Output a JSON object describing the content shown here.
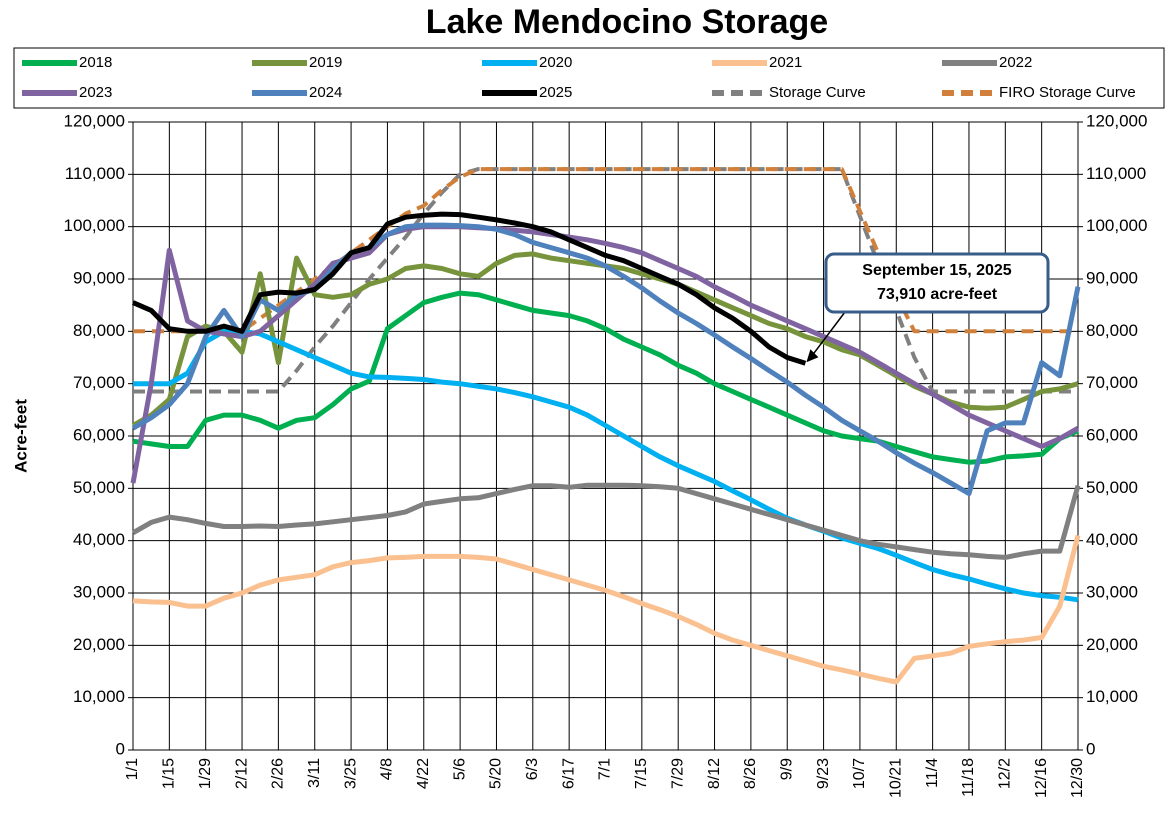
{
  "chart_data": {
    "type": "line",
    "title": "Lake Mendocino Storage",
    "y_label": "Acre-feet",
    "categories": [
      "1/1",
      null,
      "1/15",
      null,
      "1/29",
      null,
      "2/12",
      null,
      "2/26",
      null,
      "3/11",
      null,
      "3/25",
      null,
      "4/8",
      null,
      "4/22",
      null,
      "5/6",
      null,
      "5/20",
      null,
      "6/3",
      null,
      "6/17",
      null,
      "7/1",
      null,
      "7/15",
      null,
      "7/29",
      null,
      "8/12",
      null,
      "8/26",
      null,
      "9/9",
      null,
      "9/23",
      null,
      "10/7",
      null,
      "10/21",
      null,
      "11/4",
      null,
      "11/18",
      null,
      "12/2",
      null,
      "12/16",
      null,
      "12/30"
    ],
    "ylim": [
      0,
      120000
    ],
    "yticks": [
      0,
      {
        "value": 10000,
        "label": "10,000"
      },
      {
        "value": 20000,
        "label": "20,000"
      },
      {
        "value": 30000,
        "label": "30,000"
      },
      {
        "value": 40000,
        "label": "40,000"
      },
      {
        "value": 50000,
        "label": "50,000"
      },
      {
        "value": 60000,
        "label": "60,000"
      },
      {
        "value": 70000,
        "label": "70,000"
      },
      {
        "value": 80000,
        "label": "80,000"
      },
      {
        "value": 90000,
        "label": "90,000"
      },
      {
        "value": 100000,
        "label": "100,000"
      },
      {
        "value": 110000,
        "label": "110,000"
      },
      {
        "value": 120000,
        "label": "120,000"
      }
    ],
    "grid": true,
    "legend": "top",
    "annotation": [
      "September 15, 2025",
      "73,910 acre-feet"
    ],
    "series": [
      {
        "name": "2018",
        "color": "#00b050",
        "values": [
          59000,
          58500,
          58000,
          58000,
          63000,
          64000,
          64000,
          63000,
          61500,
          63000,
          63500,
          66000,
          69000,
          70500,
          80500,
          83000,
          85500,
          86500,
          87300,
          87000,
          86000,
          85000,
          84000,
          83500,
          83000,
          82000,
          80500,
          78500,
          77000,
          75500,
          73500,
          72000,
          70000,
          68500,
          67000,
          65500,
          64000,
          62500,
          61000,
          60000,
          59500,
          59000,
          58000,
          57000,
          56000,
          55500,
          55000,
          55200,
          56000,
          56200,
          56500,
          59500,
          61000
        ]
      },
      {
        "name": "2019",
        "color": "#77933c",
        "values": [
          62000,
          64000,
          67000,
          79000,
          81000,
          80000,
          76000,
          91000,
          74000,
          94000,
          87000,
          86500,
          87000,
          89000,
          90000,
          92000,
          92500,
          92000,
          91000,
          90500,
          93000,
          94500,
          94800,
          94000,
          93500,
          93000,
          92500,
          92000,
          91000,
          90000,
          89000,
          87500,
          86000,
          84500,
          83000,
          81500,
          80500,
          79000,
          78000,
          76500,
          75500,
          73500,
          71500,
          69500,
          68000,
          66500,
          65500,
          65300,
          65500,
          67000,
          68500,
          69000,
          70000
        ]
      },
      {
        "name": "2020",
        "color": "#00b0f0",
        "values": [
          70000,
          70000,
          70000,
          72000,
          78000,
          80000,
          80000,
          79500,
          78000,
          76500,
          75000,
          73500,
          72000,
          71300,
          71200,
          71000,
          70800,
          70300,
          70000,
          69500,
          69000,
          68300,
          67500,
          66500,
          65500,
          64000,
          62000,
          60000,
          58000,
          56000,
          54300,
          52800,
          51300,
          49500,
          47800,
          46000,
          44300,
          43000,
          41800,
          40500,
          39500,
          38500,
          37200,
          35800,
          34500,
          33500,
          32700,
          31700,
          30800,
          30000,
          29500,
          29200,
          28700
        ]
      },
      {
        "name": "2021",
        "color": "#fac090",
        "values": [
          28500,
          28300,
          28200,
          27500,
          27500,
          29000,
          30000,
          31500,
          32500,
          33000,
          33500,
          35000,
          35800,
          36200,
          36700,
          36800,
          37000,
          37000,
          37000,
          36800,
          36500,
          35500,
          34500,
          33500,
          32500,
          31500,
          30500,
          29300,
          28000,
          26800,
          25500,
          24000,
          22300,
          21000,
          20000,
          19000,
          18000,
          17000,
          16000,
          15300,
          14500,
          13700,
          13000,
          17500,
          18000,
          18500,
          19800,
          20300,
          20700,
          21000,
          21500,
          27500,
          41000
        ]
      },
      {
        "name": "2022",
        "color": "#808080",
        "values": [
          41500,
          43500,
          44500,
          44000,
          43300,
          42700,
          42700,
          42800,
          42700,
          43000,
          43200,
          43600,
          44000,
          44400,
          44800,
          45500,
          47000,
          47500,
          48000,
          48200,
          49000,
          49800,
          50500,
          50500,
          50200,
          50600,
          50600,
          50600,
          50500,
          50300,
          50000,
          49000,
          48000,
          47000,
          46000,
          45000,
          44000,
          43000,
          42000,
          41000,
          40000,
          39300,
          38800,
          38300,
          37800,
          37500,
          37300,
          37000,
          36800,
          37500,
          38000,
          38000,
          50500
        ]
      },
      {
        "name": "2023",
        "color": "#8064a2",
        "values": [
          51000,
          70000,
          95500,
          82000,
          80000,
          79500,
          79000,
          80000,
          83000,
          86000,
          89000,
          93000,
          94000,
          95000,
          98500,
          99500,
          100000,
          100000,
          100000,
          99800,
          99600,
          99300,
          99000,
          98500,
          98000,
          97500,
          96800,
          96000,
          95000,
          93500,
          92000,
          90500,
          88500,
          86800,
          85000,
          83500,
          82000,
          80500,
          79000,
          77500,
          76000,
          74000,
          72000,
          70000,
          68000,
          66000,
          64000,
          62500,
          61000,
          59500,
          58000,
          59500,
          61500
        ]
      },
      {
        "name": "2024",
        "color": "#4f81bd",
        "values": [
          61500,
          63500,
          66000,
          70000,
          79000,
          84000,
          79000,
          86000,
          84000,
          87000,
          88000,
          92000,
          95000,
          96000,
          98500,
          100000,
          100300,
          100300,
          100200,
          100000,
          99500,
          98500,
          97000,
          96000,
          95000,
          94000,
          92500,
          90500,
          88300,
          85800,
          83500,
          81500,
          79300,
          77000,
          74800,
          72500,
          70300,
          67800,
          65500,
          63000,
          61000,
          59000,
          56800,
          54800,
          53000,
          51000,
          49000,
          61000,
          62500,
          62500,
          74000,
          71500,
          88500
        ]
      },
      {
        "name": "2025",
        "color": "#000000",
        "values": [
          85500,
          84000,
          80500,
          80000,
          80000,
          81000,
          80000,
          87000,
          87500,
          87300,
          88000,
          91000,
          95000,
          96000,
          100500,
          101800,
          102200,
          102400,
          102300,
          101800,
          101300,
          100700,
          100000,
          99000,
          97500,
          96000,
          94500,
          93500,
          92000,
          90500,
          89000,
          87000,
          84500,
          82500,
          80000,
          77000,
          75000,
          73910,
          null,
          null,
          null,
          null,
          null,
          null,
          null,
          null,
          null,
          null,
          null,
          null,
          null,
          null,
          null
        ]
      },
      {
        "name": "Storage Curve",
        "color": "#808080",
        "dashed": true,
        "values": [
          68500,
          68500,
          68500,
          68500,
          68500,
          68500,
          68500,
          68500,
          68500,
          72500,
          77000,
          81000,
          85500,
          90000,
          94000,
          98000,
          102500,
          106500,
          110000,
          111000,
          111000,
          111000,
          111000,
          111000,
          111000,
          111000,
          111000,
          111000,
          111000,
          111000,
          111000,
          111000,
          111000,
          111000,
          111000,
          111000,
          111000,
          111000,
          111000,
          111000,
          102000,
          93000,
          84000,
          75000,
          68500,
          68500,
          68500,
          68500,
          68500,
          68500,
          68500,
          68500,
          68500
        ]
      },
      {
        "name": "FIRO Storage Curve",
        "color": "#d0803a",
        "dashed": true,
        "values": [
          80000,
          80000,
          80000,
          80000,
          80000,
          80000,
          80000,
          82500,
          85000,
          87500,
          90000,
          92500,
          95000,
          97500,
          100000,
          102500,
          104000,
          107000,
          109500,
          111000,
          111000,
          111000,
          111000,
          111000,
          111000,
          111000,
          111000,
          111000,
          111000,
          111000,
          111000,
          111000,
          111000,
          111000,
          111000,
          111000,
          111000,
          111000,
          111000,
          111000,
          103000,
          95000,
          87000,
          80000,
          80000,
          80000,
          80000,
          80000,
          80000,
          80000,
          80000,
          80000,
          80000
        ]
      }
    ]
  }
}
